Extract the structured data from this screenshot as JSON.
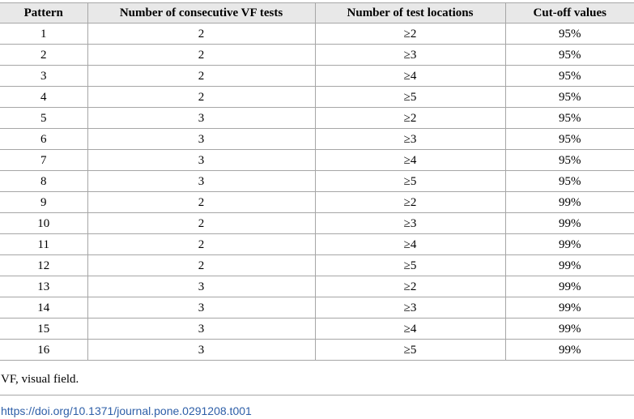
{
  "table": {
    "headers": [
      "Pattern",
      "Number of consecutive VF tests",
      "Number of test locations",
      "Cut-off values"
    ],
    "rows": [
      [
        "1",
        "2",
        "≥2",
        "95%"
      ],
      [
        "2",
        "2",
        "≥3",
        "95%"
      ],
      [
        "3",
        "2",
        "≥4",
        "95%"
      ],
      [
        "4",
        "2",
        "≥5",
        "95%"
      ],
      [
        "5",
        "3",
        "≥2",
        "95%"
      ],
      [
        "6",
        "3",
        "≥3",
        "95%"
      ],
      [
        "7",
        "3",
        "≥4",
        "95%"
      ],
      [
        "8",
        "3",
        "≥5",
        "95%"
      ],
      [
        "9",
        "2",
        "≥2",
        "99%"
      ],
      [
        "10",
        "2",
        "≥3",
        "99%"
      ],
      [
        "11",
        "2",
        "≥4",
        "99%"
      ],
      [
        "12",
        "2",
        "≥5",
        "99%"
      ],
      [
        "13",
        "3",
        "≥2",
        "99%"
      ],
      [
        "14",
        "3",
        "≥3",
        "99%"
      ],
      [
        "15",
        "3",
        "≥4",
        "99%"
      ],
      [
        "16",
        "3",
        "≥5",
        "99%"
      ]
    ]
  },
  "footnote": "VF, visual field.",
  "doi_link": "https://doi.org/10.1371/journal.pone.0291208.t001"
}
